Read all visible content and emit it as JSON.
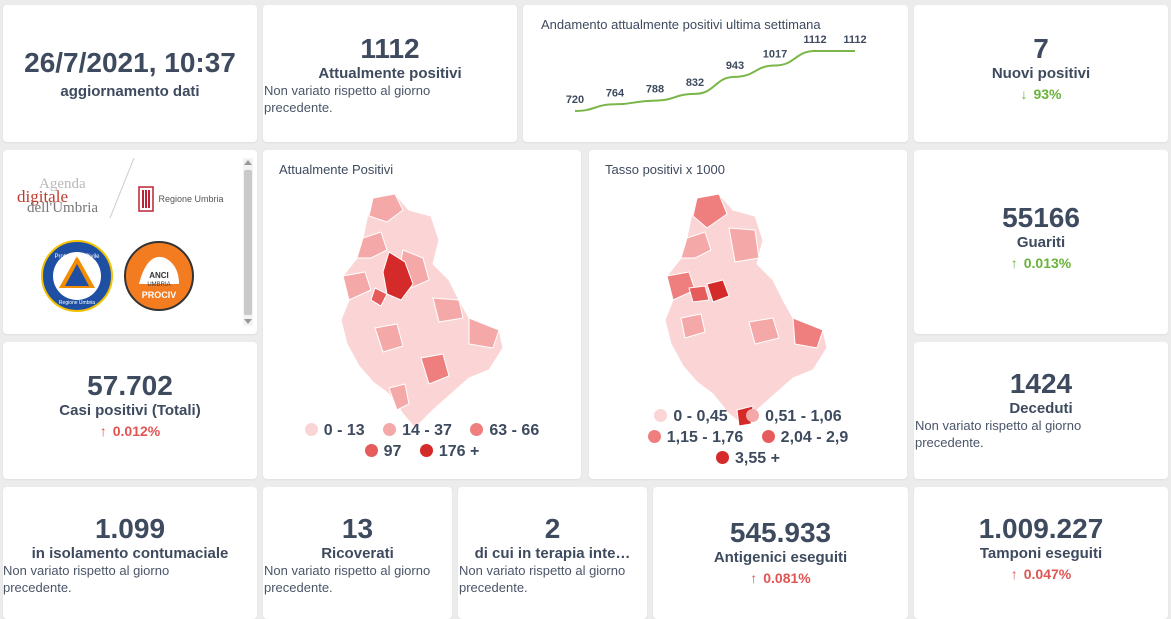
{
  "update": {
    "datetime": "26/7/2021, 10:37",
    "label": "aggiornamento dati"
  },
  "attualmente_positivi": {
    "value": "1112",
    "label": "Attualmente positivi",
    "note": "Non variato rispetto al giorno precedente."
  },
  "trend": {
    "title": "Andamento attualmente positivi ultima settimana",
    "line_color": "#7ab648"
  },
  "chart_data": {
    "type": "line",
    "title": "Andamento attualmente positivi ultima settimana",
    "values": [
      720,
      764,
      788,
      832,
      943,
      1017,
      1112,
      1112
    ],
    "labels": [
      "720",
      "764",
      "788",
      "832",
      "943",
      "1017",
      "1112",
      "1112"
    ]
  },
  "nuovi_positivi": {
    "value": "7",
    "label": "Nuovi positivi",
    "delta": "93%",
    "delta_icon": "arrow-down-icon"
  },
  "logos": {
    "agenda_line1": "Agenda",
    "agenda_line2": "digitale",
    "agenda_line3": "dell'Umbria",
    "regione": "Regione Umbria",
    "protezione_civile": "Protezione Civile",
    "protezione_sub": "Regione Umbria",
    "anci_line1": "ANCI",
    "anci_line2": "UMBRIA",
    "anci_line3": "PROCIV"
  },
  "map1": {
    "title": "Attualmente Positivi",
    "legend_row1": [
      {
        "label": "0 - 13",
        "color": "#fbd5d5"
      },
      {
        "label": "14 - 37",
        "color": "#f5a8a8"
      },
      {
        "label": "63 - 66",
        "color": "#ef7f7f"
      }
    ],
    "legend_row2": [
      {
        "label": "97",
        "color": "#e65b5b"
      },
      {
        "label": "176 +",
        "color": "#d42a2a"
      }
    ]
  },
  "map2": {
    "title": "Tasso positivi x 1000",
    "legend_row1": [
      {
        "label": "0 - 0,45",
        "color": "#fbd5d5"
      },
      {
        "label": "0,51 - 1,06",
        "color": "#f5a8a8"
      }
    ],
    "legend_row2": [
      {
        "label": "1,15 - 1,76",
        "color": "#ef7f7f"
      },
      {
        "label": "2,04 - 2,9",
        "color": "#e65b5b"
      }
    ],
    "legend_row3": [
      {
        "label": "3,55 +",
        "color": "#d42a2a"
      }
    ]
  },
  "guariti": {
    "value": "55166",
    "label": "Guariti",
    "delta": "0.013%"
  },
  "casi_totali": {
    "value": "57.702",
    "label": "Casi positivi (Totali)",
    "delta": "0.012%"
  },
  "deceduti": {
    "value": "1424",
    "label": "Deceduti",
    "note": "Non variato rispetto al giorno precedente."
  },
  "isolamento": {
    "value": "1.099",
    "label": "in isolamento contumaciale",
    "note": "Non variato rispetto al giorno precedente."
  },
  "ricoverati": {
    "value": "13",
    "label": "Ricoverati",
    "note": "Non variato rispetto al giorno precedente."
  },
  "terapia": {
    "value": "2",
    "label": "di cui in terapia inte…",
    "note": "Non variato rispetto al giorno precedente."
  },
  "antigenici": {
    "value": "545.933",
    "label": "Antigenici eseguiti",
    "delta": "0.081%"
  },
  "tamponi": {
    "value": "1.009.227",
    "label": "Tamponi eseguiti",
    "delta": "0.047%"
  }
}
